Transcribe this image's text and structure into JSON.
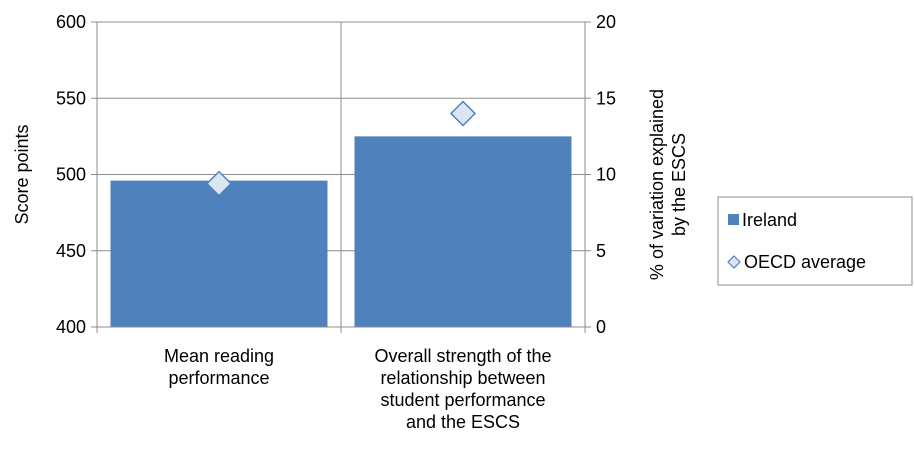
{
  "chart_data": {
    "type": "bar",
    "categories": [
      [
        "Mean reading",
        "performance"
      ],
      [
        "Overall strength of the",
        "relationship between",
        "student performance",
        "and the ESCS"
      ]
    ],
    "series": [
      {
        "name": "Ireland",
        "type": "bar",
        "values": [
          496,
          525
        ],
        "color": "#4F81BD"
      },
      {
        "name": "OECD average",
        "type": "marker",
        "marker": "diamond",
        "values": [
          494,
          540
        ],
        "color": "#DCE6F2",
        "edge_color": "#4F81BD"
      }
    ],
    "ylabel": "Score points",
    "y2label": [
      "% of variation explained",
      "by the ESCS"
    ],
    "ylim": [
      400,
      600
    ],
    "yticks": [
      400,
      450,
      500,
      550,
      600
    ],
    "y2lim": [
      0,
      20
    ],
    "y2ticks": [
      0,
      5,
      10,
      15,
      20
    ],
    "grid": true,
    "legend_position": "right"
  }
}
